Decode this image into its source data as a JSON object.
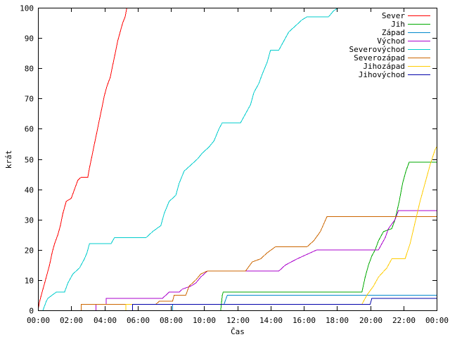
{
  "chart_data": {
    "type": "line",
    "title": "",
    "xlabel": "Čas",
    "ylabel": "krát",
    "xlim": [
      0,
      24
    ],
    "ylim": [
      0,
      100
    ],
    "grid": false,
    "legend_position": "top-right",
    "x_tick_labels": [
      "00:00",
      "02:00",
      "04:00",
      "06:00",
      "08:00",
      "10:00",
      "12:00",
      "14:00",
      "16:00",
      "18:00",
      "20:00",
      "22:00",
      "00:00"
    ],
    "y_ticks": [
      0,
      10,
      20,
      30,
      40,
      50,
      60,
      70,
      80,
      90,
      100
    ],
    "series": [
      {
        "name": "Sever",
        "color": "#ff0000",
        "points": [
          [
            0,
            0
          ],
          [
            0.1,
            3
          ],
          [
            0.25,
            6
          ],
          [
            0.4,
            9
          ],
          [
            0.55,
            12
          ],
          [
            0.7,
            15
          ],
          [
            0.85,
            19
          ],
          [
            1.0,
            22
          ],
          [
            1.2,
            25
          ],
          [
            1.35,
            28
          ],
          [
            1.5,
            32
          ],
          [
            1.7,
            36
          ],
          [
            2.0,
            37
          ],
          [
            2.2,
            40
          ],
          [
            2.4,
            43
          ],
          [
            2.6,
            44
          ],
          [
            3.0,
            44
          ],
          [
            3.1,
            47
          ],
          [
            3.25,
            51
          ],
          [
            3.4,
            55
          ],
          [
            3.55,
            59
          ],
          [
            3.7,
            63
          ],
          [
            3.85,
            67
          ],
          [
            4.0,
            71
          ],
          [
            4.15,
            74
          ],
          [
            4.35,
            77
          ],
          [
            4.5,
            81
          ],
          [
            4.65,
            85
          ],
          [
            4.8,
            89
          ],
          [
            4.95,
            92
          ],
          [
            5.1,
            95
          ],
          [
            5.25,
            97
          ],
          [
            5.35,
            100
          ]
        ]
      },
      {
        "name": "Jih",
        "color": "#00aa00",
        "points": [
          [
            11,
            0
          ],
          [
            11.1,
            5
          ],
          [
            11.15,
            6
          ],
          [
            19.5,
            6
          ],
          [
            19.7,
            11
          ],
          [
            19.9,
            15
          ],
          [
            20.1,
            18
          ],
          [
            20.3,
            20
          ],
          [
            20.5,
            23
          ],
          [
            20.8,
            26
          ],
          [
            21.3,
            27
          ],
          [
            21.5,
            30
          ],
          [
            21.75,
            36
          ],
          [
            21.95,
            42
          ],
          [
            22.15,
            46
          ],
          [
            22.35,
            49
          ],
          [
            24,
            49
          ]
        ]
      },
      {
        "name": "Západ",
        "color": "#0088cc",
        "points": [
          [
            8.1,
            0
          ],
          [
            8.1,
            2
          ],
          [
            11.2,
            2
          ],
          [
            11.4,
            5
          ],
          [
            24,
            5
          ]
        ]
      },
      {
        "name": "Východ",
        "color": "#aa00cc",
        "points": [
          [
            3.5,
            0
          ],
          [
            3.5,
            2
          ],
          [
            4.1,
            2
          ],
          [
            4.1,
            4
          ],
          [
            7.5,
            4
          ],
          [
            7.9,
            6
          ],
          [
            8.5,
            6
          ],
          [
            8.7,
            7
          ],
          [
            9.2,
            8
          ],
          [
            9.5,
            9
          ],
          [
            9.8,
            11
          ],
          [
            10.2,
            13
          ],
          [
            14.5,
            13
          ],
          [
            14.9,
            15
          ],
          [
            15.6,
            17
          ],
          [
            16.0,
            18
          ],
          [
            16.4,
            19
          ],
          [
            16.8,
            20
          ],
          [
            20.5,
            20
          ],
          [
            20.9,
            24
          ],
          [
            21.1,
            27
          ],
          [
            21.5,
            30
          ],
          [
            21.7,
            33
          ],
          [
            24,
            33
          ]
        ]
      },
      {
        "name": "Severovýchod",
        "color": "#00cccc",
        "points": [
          [
            0.3,
            0
          ],
          [
            0.5,
            3
          ],
          [
            0.6,
            4
          ],
          [
            1.1,
            6
          ],
          [
            1.6,
            6
          ],
          [
            1.8,
            9
          ],
          [
            2.1,
            12
          ],
          [
            2.5,
            14
          ],
          [
            2.8,
            17
          ],
          [
            2.95,
            19
          ],
          [
            3.1,
            22
          ],
          [
            4.4,
            22
          ],
          [
            4.6,
            24
          ],
          [
            6.5,
            24
          ],
          [
            6.9,
            26
          ],
          [
            7.4,
            28
          ],
          [
            7.6,
            32
          ],
          [
            7.9,
            36
          ],
          [
            8.3,
            38
          ],
          [
            8.5,
            42
          ],
          [
            8.8,
            46
          ],
          [
            9.2,
            48
          ],
          [
            9.6,
            50
          ],
          [
            9.9,
            52
          ],
          [
            10.3,
            54
          ],
          [
            10.6,
            56
          ],
          [
            10.9,
            60
          ],
          [
            11.1,
            62
          ],
          [
            12.2,
            62
          ],
          [
            12.5,
            65
          ],
          [
            12.8,
            68
          ],
          [
            13.0,
            72
          ],
          [
            13.3,
            75
          ],
          [
            13.5,
            78
          ],
          [
            13.8,
            82
          ],
          [
            14.0,
            86
          ],
          [
            14.5,
            86
          ],
          [
            14.7,
            88
          ],
          [
            14.9,
            90
          ],
          [
            15.1,
            92
          ],
          [
            15.5,
            94
          ],
          [
            15.9,
            96
          ],
          [
            16.2,
            97
          ],
          [
            17.5,
            97
          ],
          [
            17.8,
            99
          ],
          [
            18.1,
            100
          ]
        ]
      },
      {
        "name": "Severozápad",
        "color": "#cc6600",
        "points": [
          [
            2.6,
            0
          ],
          [
            2.6,
            2
          ],
          [
            7.1,
            2
          ],
          [
            7.3,
            3
          ],
          [
            8.1,
            3
          ],
          [
            8.2,
            5
          ],
          [
            8.9,
            5
          ],
          [
            9.1,
            8
          ],
          [
            9.5,
            10
          ],
          [
            9.8,
            12
          ],
          [
            10.2,
            13
          ],
          [
            12.5,
            13
          ],
          [
            12.9,
            16
          ],
          [
            13.4,
            17
          ],
          [
            13.8,
            19
          ],
          [
            14.3,
            21
          ],
          [
            16.2,
            21
          ],
          [
            16.6,
            23
          ],
          [
            17.0,
            26
          ],
          [
            17.4,
            31
          ],
          [
            24,
            31
          ]
        ]
      },
      {
        "name": "Jihozápad",
        "color": "#ffcc00",
        "points": [
          [
            5.3,
            0
          ],
          [
            5.3,
            2
          ],
          [
            19.5,
            2
          ],
          [
            19.8,
            5
          ],
          [
            20.2,
            8
          ],
          [
            20.5,
            11
          ],
          [
            21.0,
            14
          ],
          [
            21.3,
            17
          ],
          [
            22.1,
            17
          ],
          [
            22.4,
            22
          ],
          [
            22.7,
            29
          ],
          [
            23.0,
            36
          ],
          [
            23.3,
            42
          ],
          [
            23.6,
            48
          ],
          [
            23.9,
            53
          ],
          [
            24,
            54
          ]
        ]
      },
      {
        "name": "Jihovýchod",
        "color": "#0000aa",
        "points": [
          [
            5.7,
            0
          ],
          [
            5.7,
            2
          ],
          [
            20.0,
            2
          ],
          [
            20.1,
            4
          ],
          [
            24,
            4
          ]
        ]
      }
    ]
  }
}
